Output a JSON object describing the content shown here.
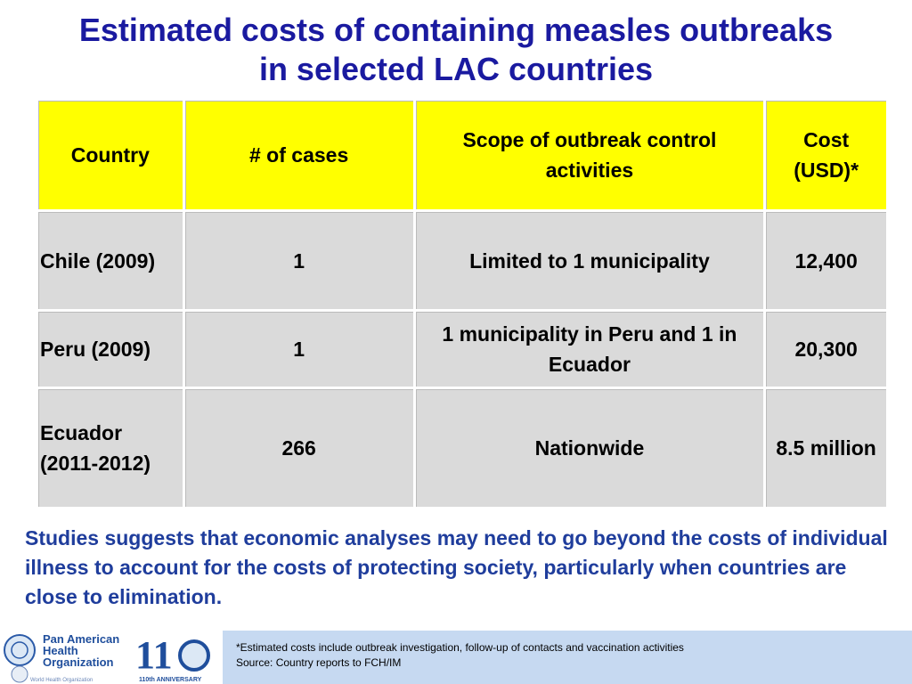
{
  "header": {
    "title_lines": [
      "Estimated costs of containing measles outbreaks",
      "in selected LAC countries"
    ]
  },
  "table": {
    "headers": [
      "Country",
      "# of cases",
      "Scope of outbreak control activities",
      "Cost (USD)*"
    ],
    "rows": [
      [
        "Chile (2009)",
        "1",
        "Limited to 1 municipality",
        "12,400"
      ],
      [
        "Peru (2009)",
        "1",
        "1 municipality in Peru and 1 in Ecuador",
        "20,300"
      ],
      [
        "Ecuador (2011-2012)",
        "266",
        "Nationwide",
        "8.5 million"
      ]
    ]
  },
  "paragraph": "Studies suggests that economic analyses may need to go beyond the costs of individual illness to account for the costs of protecting society, particularly when countries are close to elimination.",
  "footer": {
    "logo_lines": [
      "Pan American",
      "Health",
      "Organization"
    ],
    "anniversary": "110th ANNIVERSARY",
    "who": "World Health Organization",
    "notes": [
      "*Estimated costs include outbreak investigation, follow-up of contacts and vaccination activities",
      "Source: Country reports to FCH/IM"
    ]
  }
}
